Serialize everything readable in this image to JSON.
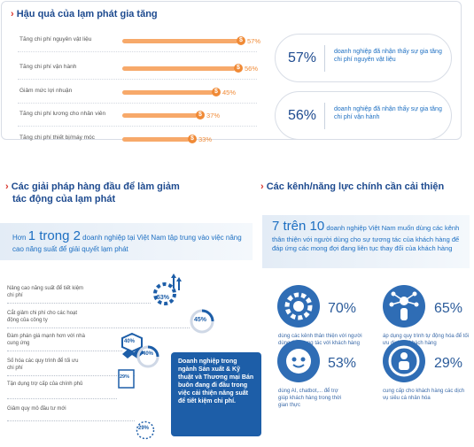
{
  "section1": {
    "title": "Hậu quả của lạm phát gia tăng",
    "bars": [
      {
        "label": "Tăng chi phí nguyên vật liệu",
        "value": 57,
        "text": "57%"
      },
      {
        "label": "Tăng chi phí vận hành",
        "value": 56,
        "text": "56%"
      },
      {
        "label": "Giảm mức lợi nhuận",
        "value": 45,
        "text": "45%"
      },
      {
        "label": "Tăng chi phí lương cho nhân viên",
        "value": 37,
        "text": "37%"
      },
      {
        "label": "Tăng chi phí thiết bị/máy móc",
        "value": 33,
        "text": "33%"
      }
    ],
    "stats": [
      {
        "value": "57%",
        "text": "doanh nghiệp đã nhận thấy sự gia tăng chi phí nguyên vật liệu"
      },
      {
        "value": "56%",
        "text": "doanh nghiệp đã nhận thấy sự gia tăng chi phí vận hành"
      }
    ]
  },
  "section2": {
    "title_line1": "Các giải pháp hàng đầu để làm giảm",
    "title_line2": "tác động của lạm phát",
    "intro_pre": "Hơn",
    "intro_big": "1 trong 2",
    "intro_post": "doanh nghiệp tại Việt Nam tập trung vào việc nâng cao năng suất để giải quyết lạm phát",
    "items": [
      {
        "label": "Nâng cao năng suất để tiết kiệm chi phí",
        "pct": "53%"
      },
      {
        "label": "Cắt giảm chi phí cho các hoạt động của công ty",
        "pct": "45%"
      },
      {
        "label": "Đàm phán giá mạnh hơn với nhà cung ứng",
        "pct": "40%"
      },
      {
        "label": "Số hóa các quy trình để tối ưu chi phí",
        "pct": "40%"
      },
      {
        "label": "Tận dụng trợ cấp của chính phủ",
        "pct": "29%"
      },
      {
        "label": "Giảm quy mô đầu tư mới",
        "pct": "29%"
      }
    ],
    "callout": "Doanh nghiệp trong ngành Sản xuất & Kỹ thuật và Thương mại Bán buôn đang đi đầu trong việc cải thiện năng suất để tiết kiệm chi phí."
  },
  "section3": {
    "title": "Các kênh/năng lực chính cần cải thiện",
    "intro_big": "7 trên 10",
    "intro_text": "doanh nghiệp Việt Nam muốn dùng các kênh thân thiện với người dùng cho sự tương tác của khách hàng để đáp ứng các mong đợi đang liên tục thay đổi của khách hàng",
    "cards": [
      {
        "pct": "70%",
        "text": "dùng các kênh thân thiện với người dùng để tương tác với khách hàng",
        "icon": "gear-icon"
      },
      {
        "pct": "65%",
        "text": "áp dụng quy trình tự động hóa để tối ưu dịch vụ khách hàng",
        "icon": "automation-hand-icon"
      },
      {
        "pct": "53%",
        "text": "dùng AI, chatbot,... để trợ giúp khách hàng trong thời gian thực",
        "icon": "chatbot-icon"
      },
      {
        "pct": "29%",
        "text": "cung cấp cho khách hàng các dịch vụ siêu cá nhân hóa",
        "icon": "personalization-icon"
      }
    ]
  }
}
